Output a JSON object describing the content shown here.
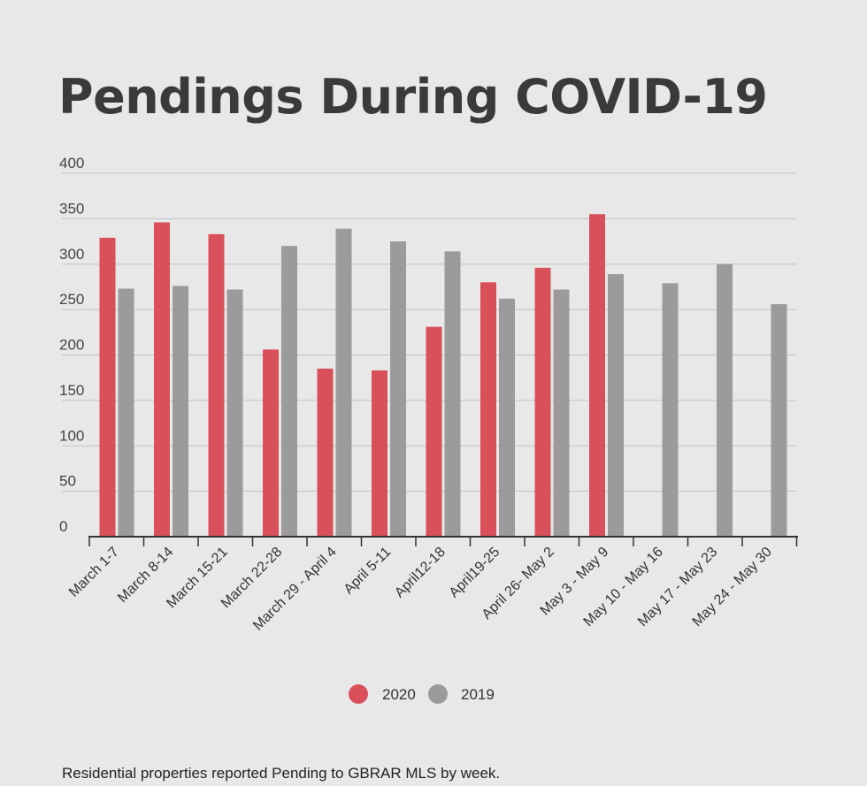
{
  "chart_data": {
    "type": "bar",
    "title": "Pendings During COVID-19",
    "footnote": "Residential properties reported Pending to GBRAR MLS by week.",
    "xlabel": "",
    "ylabel": "",
    "ylim": [
      0,
      400
    ],
    "yticks": [
      "0",
      "50",
      "100",
      "150",
      "200",
      "250",
      "300",
      "350",
      "400"
    ],
    "grid": true,
    "legend_position": "bottom-center",
    "categories": [
      "March 1-7",
      "March 8-14",
      "March 15-21",
      "March 22-28",
      "March 29 - April 4",
      "April 5-11",
      "April12-18",
      "April19-25",
      "April 26- May 2",
      "May 3 - May 9",
      "May 10 - May 16",
      "May 17 - May 23",
      "May 24 - May 30"
    ],
    "series": [
      {
        "name": "2020",
        "color": "#d9505a",
        "values": [
          329,
          346,
          333,
          206,
          185,
          183,
          231,
          280,
          296,
          355,
          null,
          null,
          null
        ]
      },
      {
        "name": "2019",
        "color": "#9b9b9b",
        "values": [
          273,
          276,
          272,
          320,
          339,
          325,
          314,
          262,
          272,
          289,
          279,
          300,
          256
        ]
      }
    ]
  }
}
